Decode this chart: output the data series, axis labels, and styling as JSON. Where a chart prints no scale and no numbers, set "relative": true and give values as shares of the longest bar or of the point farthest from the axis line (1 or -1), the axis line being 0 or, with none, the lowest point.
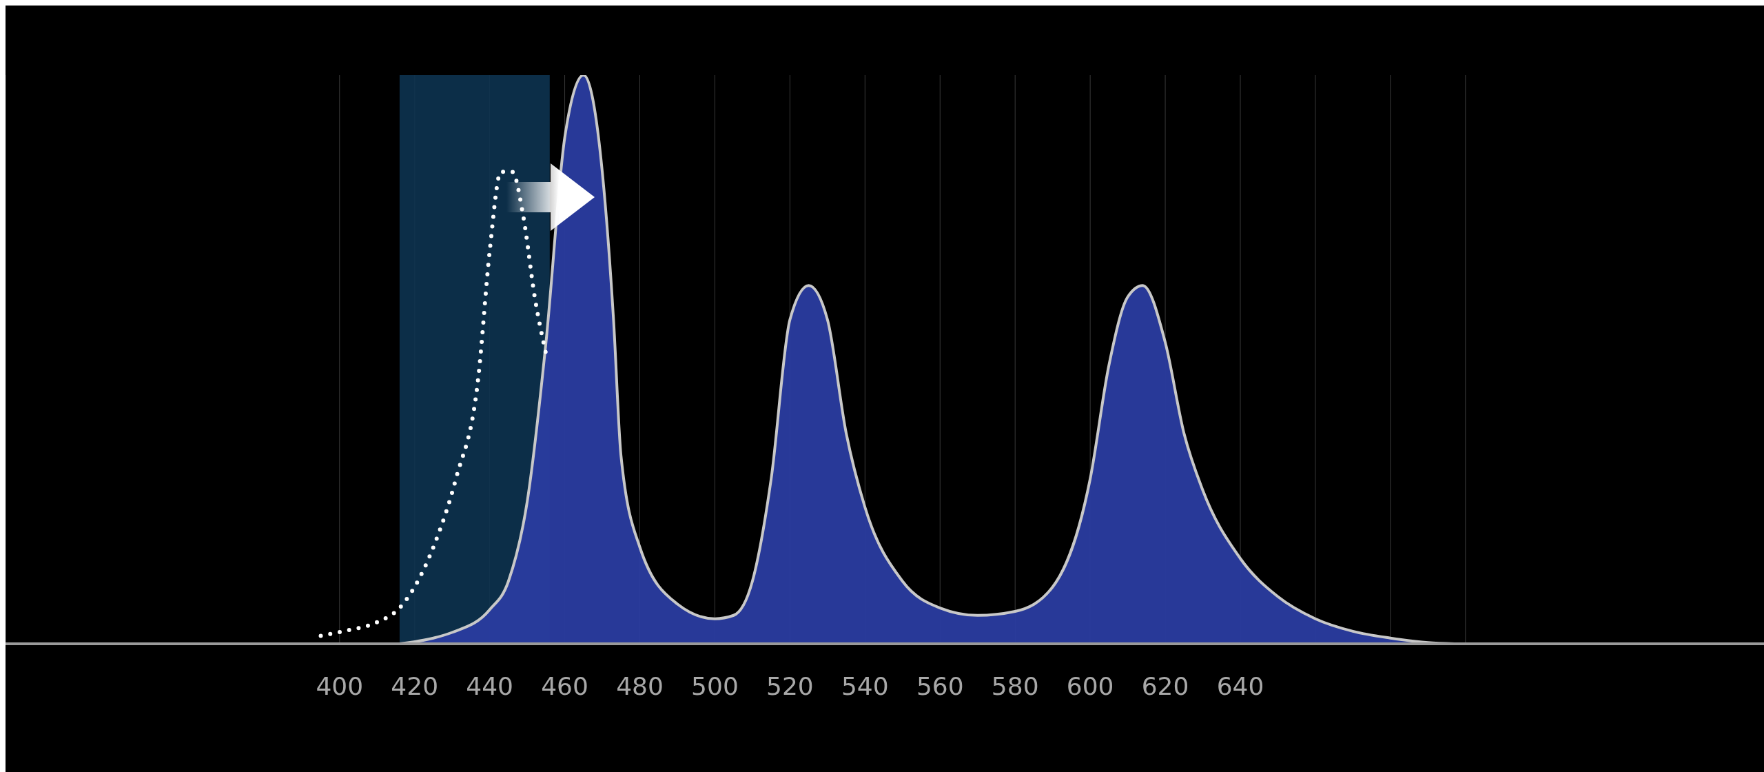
{
  "chart_data": {
    "type": "area",
    "relative": true,
    "xlim": [
      311,
      781
    ],
    "xticks": [
      400,
      420,
      440,
      460,
      480,
      500,
      520,
      540,
      560,
      580,
      600,
      620,
      640,
      {
        "value": 660,
        "label": null
      },
      {
        "value": 680,
        "label": null
      },
      {
        "value": 700,
        "label": null
      }
    ],
    "grid": "x",
    "legend": false,
    "bands": [
      {
        "axis": "x",
        "from": 416,
        "to": 456,
        "color": "#0d3350"
      }
    ],
    "series": [
      {
        "color": "#2a3ca0",
        "x": [
          416,
          425,
          430,
          440,
          445,
          450,
          455,
          460,
          465,
          470,
          473,
          475,
          480,
          490,
          500,
          505,
          510,
          515,
          520,
          525,
          530,
          535,
          540,
          550,
          560,
          570,
          580,
          590,
          600,
          605,
          610,
          614,
          620,
          625,
          630,
          640,
          650,
          660,
          670,
          680,
          690,
          697
        ],
        "values": [
          0,
          0.01,
          0.02,
          0.06,
          0.11,
          0.25,
          0.53,
          0.89,
          1,
          0.83,
          0.57,
          0.33,
          0.17,
          0.07,
          0.044,
          0.05,
          0.11,
          0.29,
          0.57,
          0.63,
          0.57,
          0.37,
          0.24,
          0.11,
          0.063,
          0.05,
          0.057,
          0.1,
          0.29,
          0.49,
          0.61,
          0.63,
          0.53,
          0.37,
          0.27,
          0.15,
          0.083,
          0.044,
          0.022,
          0.01,
          0.002,
          0
        ]
      },
      {
        "type": "line",
        "color": "#ffffff",
        "line_style": "dotted",
        "x": [
          395,
          401,
          410,
          416,
          425,
          431,
          437,
          440,
          443,
          446,
          449,
          452,
          455
        ],
        "values": [
          0.014,
          0.022,
          0.038,
          0.063,
          0.17,
          0.29,
          0.47,
          0.69,
          0.83,
          0.83,
          0.75,
          0.61,
          0.51
        ]
      }
    ]
  }
}
